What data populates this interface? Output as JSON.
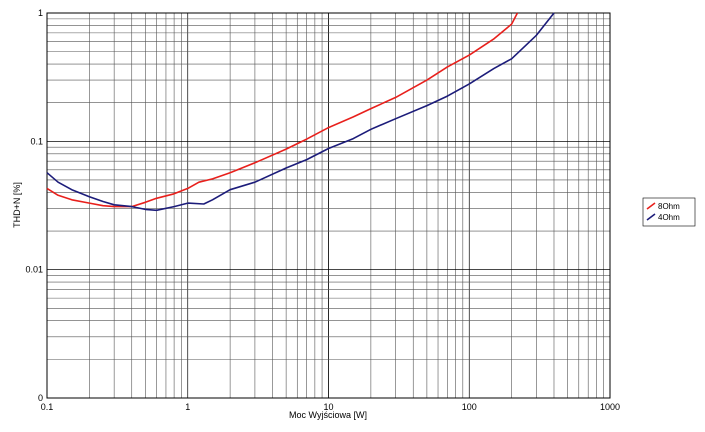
{
  "chart_data": {
    "type": "line",
    "title": "",
    "xlabel": "Moc Wyjściowa [W]",
    "ylabel": "THD+N [%]",
    "xscale": "log",
    "yscale": "log",
    "xlim": [
      0.1,
      1000
    ],
    "ylim": [
      0.001,
      1
    ],
    "grid": true,
    "legend": "right",
    "x_ticks": [
      {
        "value": 0.1,
        "label": "0.1"
      },
      {
        "value": 1,
        "label": "1"
      },
      {
        "value": 10,
        "label": "10"
      },
      {
        "value": 100,
        "label": "100"
      },
      {
        "value": 1000,
        "label": "1000"
      }
    ],
    "y_ticks": [
      {
        "value": 0.001,
        "label": "0"
      },
      {
        "value": 0.01,
        "label": "0.01"
      },
      {
        "value": 0.1,
        "label": "0.1"
      },
      {
        "value": 1,
        "label": "1"
      }
    ],
    "series": [
      {
        "name": "8Ohm",
        "color": "#e8201c",
        "points": [
          [
            0.1,
            0.043
          ],
          [
            0.12,
            0.038
          ],
          [
            0.15,
            0.035
          ],
          [
            0.2,
            0.033
          ],
          [
            0.25,
            0.0315
          ],
          [
            0.3,
            0.031
          ],
          [
            0.4,
            0.031
          ],
          [
            0.5,
            0.0335
          ],
          [
            0.6,
            0.036
          ],
          [
            0.8,
            0.039
          ],
          [
            1.0,
            0.043
          ],
          [
            1.2,
            0.048
          ],
          [
            1.5,
            0.051
          ],
          [
            2.0,
            0.057
          ],
          [
            3.0,
            0.068
          ],
          [
            5.0,
            0.087
          ],
          [
            7.0,
            0.104
          ],
          [
            10.0,
            0.128
          ],
          [
            15.0,
            0.155
          ],
          [
            20.0,
            0.18
          ],
          [
            30.0,
            0.22
          ],
          [
            50.0,
            0.3
          ],
          [
            70.0,
            0.38
          ],
          [
            100.0,
            0.47
          ],
          [
            150.0,
            0.63
          ],
          [
            200.0,
            0.82
          ],
          [
            220.0,
            1.0
          ]
        ]
      },
      {
        "name": "4Ohm",
        "color": "#1c1c7a",
        "points": [
          [
            0.1,
            0.057
          ],
          [
            0.12,
            0.048
          ],
          [
            0.15,
            0.042
          ],
          [
            0.2,
            0.037
          ],
          [
            0.25,
            0.034
          ],
          [
            0.3,
            0.032
          ],
          [
            0.4,
            0.031
          ],
          [
            0.5,
            0.0295
          ],
          [
            0.6,
            0.029
          ],
          [
            0.8,
            0.031
          ],
          [
            1.0,
            0.033
          ],
          [
            1.3,
            0.0325
          ],
          [
            1.5,
            0.035
          ],
          [
            2.0,
            0.042
          ],
          [
            3.0,
            0.048
          ],
          [
            5.0,
            0.062
          ],
          [
            7.0,
            0.072
          ],
          [
            10.0,
            0.088
          ],
          [
            15.0,
            0.105
          ],
          [
            20.0,
            0.124
          ],
          [
            30.0,
            0.15
          ],
          [
            50.0,
            0.19
          ],
          [
            70.0,
            0.225
          ],
          [
            100.0,
            0.28
          ],
          [
            150.0,
            0.37
          ],
          [
            200.0,
            0.44
          ],
          [
            300.0,
            0.67
          ],
          [
            400.0,
            1.0
          ]
        ]
      }
    ]
  }
}
